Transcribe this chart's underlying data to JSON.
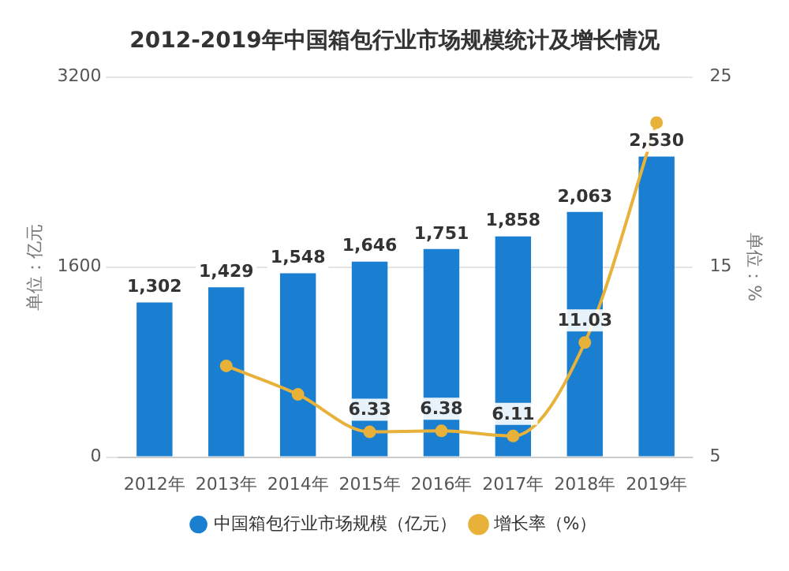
{
  "chart_data": {
    "type": "bar",
    "title": "2012-2019年中国箱包行业市场规模统计及增长情况",
    "categories": [
      "2012年",
      "2013年",
      "2014年",
      "2015年",
      "2016年",
      "2017年",
      "2018年",
      "2019年"
    ],
    "series": [
      {
        "name": "中国箱包行业市场规模（亿元）",
        "color": "#1b7fd1",
        "values": [
          1302,
          1429,
          1548,
          1646,
          1751,
          1858,
          2063,
          2530
        ],
        "value_labels": [
          "1,302",
          "1,429",
          "1,548",
          "1,646",
          "1,751",
          "1,858",
          "2,063",
          "2,530"
        ]
      },
      {
        "name": "增长率（%）",
        "type": "line",
        "axis": "y2",
        "color": "#e8b23a",
        "marker": "circle",
        "values": [
          null,
          9.8,
          8.3,
          6.33,
          6.38,
          6.11,
          11.03,
          22.6
        ],
        "value_labels": [
          null,
          null,
          null,
          "6.33",
          "6.38",
          "6.11",
          "11.03",
          null
        ]
      }
    ],
    "ylabel": "单位：亿元",
    "y2label": "单位：%",
    "ylim": [
      0,
      3200
    ],
    "yticks": [
      0,
      1600,
      3200
    ],
    "y2lim": [
      5,
      25
    ],
    "y2ticks": [
      5,
      15,
      25
    ],
    "grid": "y",
    "legend": "bottom"
  }
}
